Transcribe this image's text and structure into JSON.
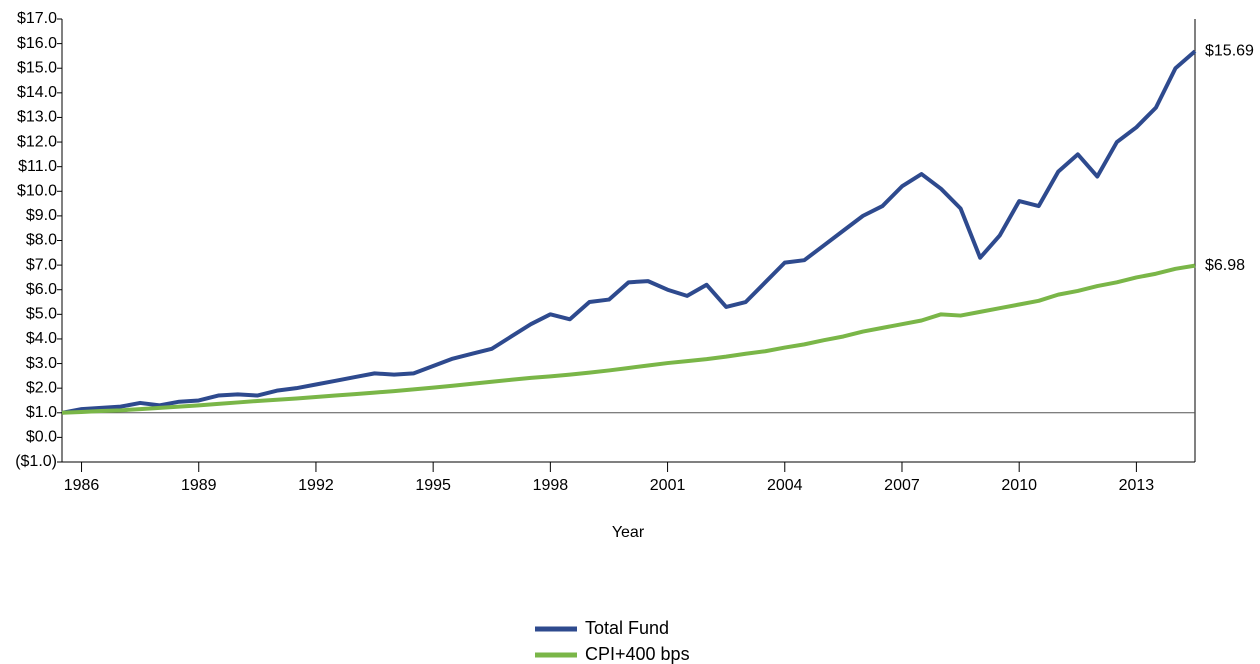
{
  "chart_data": {
    "type": "line",
    "x_label": "Year",
    "x": [
      1985.5,
      1986,
      1986.5,
      1987,
      1987.5,
      1988,
      1988.5,
      1989,
      1989.5,
      1990,
      1990.5,
      1991,
      1991.5,
      1992,
      1992.5,
      1993,
      1993.5,
      1994,
      1994.5,
      1995,
      1995.5,
      1996,
      1996.5,
      1997,
      1997.5,
      1998,
      1998.5,
      1999,
      1999.5,
      2000,
      2000.5,
      2001,
      2001.5,
      2002,
      2002.5,
      2003,
      2003.5,
      2004,
      2004.5,
      2005,
      2005.5,
      2006,
      2006.5,
      2007,
      2007.5,
      2008,
      2008.5,
      2009,
      2009.5,
      2010,
      2010.5,
      2011,
      2011.5,
      2012,
      2012.5,
      2013,
      2013.5,
      2014,
      2014.5
    ],
    "series": [
      {
        "name": "Total Fund",
        "color": "#2e4a8e",
        "values": [
          1.0,
          1.15,
          1.2,
          1.25,
          1.4,
          1.3,
          1.45,
          1.5,
          1.7,
          1.75,
          1.7,
          1.9,
          2.0,
          2.15,
          2.3,
          2.45,
          2.6,
          2.55,
          2.6,
          2.9,
          3.2,
          3.4,
          3.6,
          4.1,
          4.6,
          5.0,
          4.8,
          5.5,
          5.6,
          6.3,
          6.35,
          6.0,
          5.75,
          6.2,
          5.3,
          5.5,
          6.3,
          7.1,
          7.2,
          7.8,
          8.4,
          9.0,
          9.4,
          10.2,
          10.7,
          10.1,
          9.3,
          7.3,
          8.2,
          9.6,
          9.4,
          10.8,
          11.5,
          10.6,
          12.0,
          12.6,
          13.4,
          15.0,
          15.69
        ]
      },
      {
        "name": "CPI+400 bps",
        "color": "#7ab648",
        "values": [
          1.0,
          1.03,
          1.07,
          1.1,
          1.15,
          1.2,
          1.25,
          1.3,
          1.36,
          1.42,
          1.48,
          1.53,
          1.58,
          1.64,
          1.7,
          1.76,
          1.82,
          1.88,
          1.95,
          2.02,
          2.1,
          2.18,
          2.26,
          2.34,
          2.42,
          2.48,
          2.55,
          2.63,
          2.72,
          2.82,
          2.92,
          3.02,
          3.1,
          3.18,
          3.28,
          3.4,
          3.5,
          3.65,
          3.78,
          3.95,
          4.1,
          4.3,
          4.45,
          4.6,
          4.75,
          5.0,
          4.95,
          5.1,
          5.25,
          5.4,
          5.55,
          5.8,
          5.95,
          6.15,
          6.3,
          6.5,
          6.65,
          6.85,
          6.98
        ]
      }
    ],
    "annotations": [
      {
        "text": "$15.69",
        "x": 2014.5,
        "y": 15.69
      },
      {
        "text": "$6.98",
        "x": 2014.5,
        "y": 6.98
      }
    ],
    "xlim": [
      1985.5,
      2014.5
    ],
    "xticks": [
      1986,
      1989,
      1992,
      1995,
      1998,
      2001,
      2004,
      2007,
      2010,
      2013
    ],
    "ylim": [
      -1,
      17
    ],
    "yticks": [
      {
        "value": -1,
        "label": "($1.0)"
      },
      {
        "value": 0,
        "label": "$0.0"
      },
      {
        "value": 1,
        "label": "$1.0"
      },
      {
        "value": 2,
        "label": "$2.0"
      },
      {
        "value": 3,
        "label": "$3.0"
      },
      {
        "value": 4,
        "label": "$4.0"
      },
      {
        "value": 5,
        "label": "$5.0"
      },
      {
        "value": 6,
        "label": "$6.0"
      },
      {
        "value": 7,
        "label": "$7.0"
      },
      {
        "value": 8,
        "label": "$8.0"
      },
      {
        "value": 9,
        "label": "$9.0"
      },
      {
        "value": 10,
        "label": "$10.0"
      },
      {
        "value": 11,
        "label": "$11.0"
      },
      {
        "value": 12,
        "label": "$12.0"
      },
      {
        "value": 13,
        "label": "$13.0"
      },
      {
        "value": 14,
        "label": "$14.0"
      },
      {
        "value": 15,
        "label": "$15.0"
      },
      {
        "value": 16,
        "label": "$16.0"
      },
      {
        "value": 17,
        "label": "$17.0"
      }
    ],
    "reference_line": 1,
    "grid": false,
    "legend": "bottom"
  }
}
